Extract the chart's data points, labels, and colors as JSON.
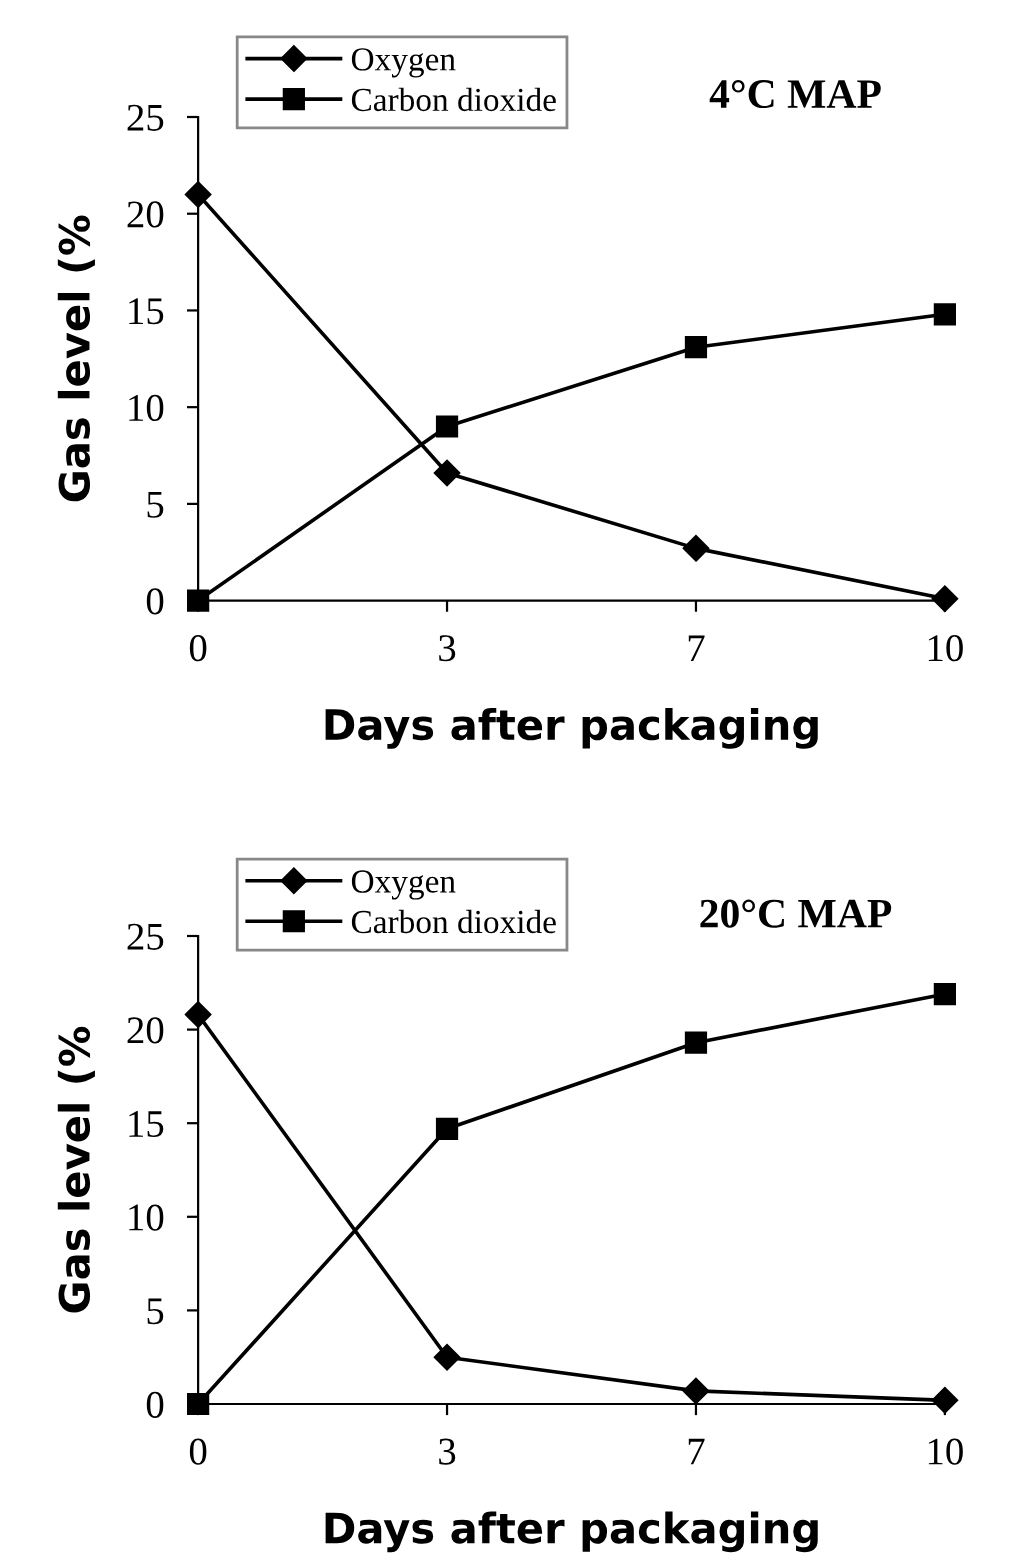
{
  "chart_data": [
    {
      "type": "line",
      "title": "4°C MAP",
      "xlabel": "Days after packaging",
      "ylabel": "Gas level (%",
      "categories": [
        "0",
        "3",
        "7",
        "10"
      ],
      "ylim": [
        0,
        25
      ],
      "yticks": [
        0,
        5,
        10,
        15,
        20,
        25
      ],
      "legend": "top left",
      "grid": false,
      "series": [
        {
          "name": "Oxygen",
          "color": "#000000",
          "marker": "diamond",
          "values": [
            21,
            6.6,
            2.7,
            0.1
          ]
        },
        {
          "name": "Carbon dioxide",
          "color": "#000000",
          "marker": "square",
          "values": [
            0,
            9,
            13.1,
            14.8
          ]
        }
      ]
    },
    {
      "type": "line",
      "title": "20°C MAP",
      "xlabel": "Days after packaging",
      "ylabel": "Gas level (%",
      "categories": [
        "0",
        "3",
        "7",
        "10"
      ],
      "ylim": [
        0,
        25
      ],
      "yticks": [
        0,
        5,
        10,
        15,
        20,
        25
      ],
      "legend": "top left",
      "grid": false,
      "series": [
        {
          "name": "Oxygen",
          "color": "#000000",
          "marker": "diamond",
          "values": [
            20.8,
            2.5,
            0.7,
            0.2
          ]
        },
        {
          "name": "Carbon dioxide",
          "color": "#000000",
          "marker": "square",
          "values": [
            0,
            14.7,
            19.3,
            21.9
          ]
        }
      ]
    }
  ]
}
